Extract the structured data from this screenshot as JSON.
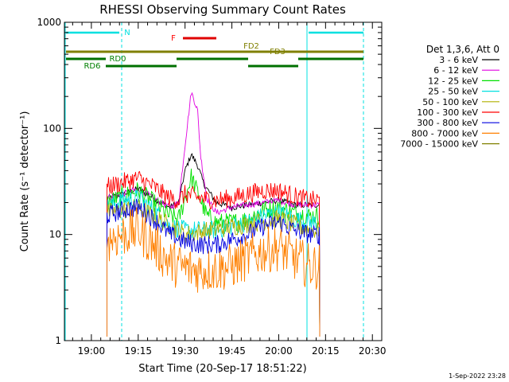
{
  "footer_date": "1-Sep-2022 23:28",
  "chart_data": {
    "type": "line",
    "title": "RHESSI Observing Summary Count Rates",
    "xlabel": "Start Time (20-Sep-17 18:51:22)",
    "ylabel": "Count Rate (s⁻¹ detector⁻¹)",
    "yscale": "log",
    "ylim": [
      1,
      1000
    ],
    "xlim": [
      "18:51:22",
      "20:33"
    ],
    "x_ticks": [
      "19:00",
      "19:15",
      "19:30",
      "19:45",
      "20:00",
      "20:15",
      "20:30"
    ],
    "y_ticks": [
      "1",
      "10",
      "100",
      "1000"
    ],
    "grid": false,
    "legend_title": "Det 1,3,6, Att 0",
    "legend_position": "right",
    "series": [
      {
        "name": "3 - 6 keV",
        "color": "#000000",
        "points": [
          [
            "19:05",
            22
          ],
          [
            "19:10",
            24
          ],
          [
            "19:15",
            27
          ],
          [
            "19:20",
            22
          ],
          [
            "19:25",
            18
          ],
          [
            "19:28",
            20
          ],
          [
            "19:30",
            40
          ],
          [
            "19:32",
            57
          ],
          [
            "19:34",
            45
          ],
          [
            "19:36",
            30
          ],
          [
            "19:40",
            20
          ],
          [
            "19:45",
            18
          ],
          [
            "19:50",
            19
          ],
          [
            "19:55",
            20
          ],
          [
            "20:00",
            21
          ],
          [
            "20:05",
            19
          ],
          [
            "20:10",
            19
          ]
        ]
      },
      {
        "name": "6 - 12 keV",
        "color": "#e000e0",
        "points": [
          [
            "19:05",
            22
          ],
          [
            "19:10",
            24
          ],
          [
            "19:15",
            27
          ],
          [
            "19:20",
            22
          ],
          [
            "19:25",
            18
          ],
          [
            "19:28",
            20
          ],
          [
            "19:30",
            70
          ],
          [
            "19:32",
            220
          ],
          [
            "19:34",
            150
          ],
          [
            "19:35",
            55
          ],
          [
            "19:37",
            22
          ],
          [
            "19:40",
            16
          ],
          [
            "19:45",
            18
          ],
          [
            "19:50",
            19
          ],
          [
            "19:55",
            20
          ],
          [
            "20:00",
            21
          ],
          [
            "20:05",
            19
          ],
          [
            "20:10",
            19
          ]
        ]
      },
      {
        "name": "12 - 25 keV",
        "color": "#00e000",
        "points": [
          [
            "19:05",
            20
          ],
          [
            "19:10",
            23
          ],
          [
            "19:15",
            26
          ],
          [
            "19:20",
            20
          ],
          [
            "19:25",
            15
          ],
          [
            "19:28",
            14
          ],
          [
            "19:30",
            22
          ],
          [
            "19:32",
            35
          ],
          [
            "19:34",
            25
          ],
          [
            "19:37",
            15
          ],
          [
            "19:40",
            13
          ],
          [
            "19:45",
            13
          ],
          [
            "19:50",
            14
          ],
          [
            "19:55",
            17
          ],
          [
            "20:00",
            18
          ],
          [
            "20:05",
            16
          ],
          [
            "20:10",
            15
          ]
        ]
      },
      {
        "name": "25 - 50 keV",
        "color": "#00e0e0",
        "points": [
          [
            "19:05",
            18
          ],
          [
            "19:10",
            21
          ],
          [
            "19:15",
            22
          ],
          [
            "19:20",
            17
          ],
          [
            "19:25",
            12
          ],
          [
            "19:30",
            11
          ],
          [
            "19:35",
            11
          ],
          [
            "19:40",
            11
          ],
          [
            "19:45",
            12
          ],
          [
            "19:50",
            13
          ],
          [
            "19:55",
            15
          ],
          [
            "20:00",
            16
          ],
          [
            "20:05",
            14
          ],
          [
            "20:10",
            13
          ]
        ]
      },
      {
        "name": "50 - 100 keV",
        "color": "#b0b000",
        "points": [
          [
            "19:05",
            16
          ],
          [
            "19:15",
            18
          ],
          [
            "19:30",
            10
          ],
          [
            "20:00",
            14
          ],
          [
            "20:10",
            11
          ]
        ]
      },
      {
        "name": "100 - 300 keV",
        "color": "#ff0000",
        "points": [
          [
            "19:05",
            28
          ],
          [
            "19:10",
            31
          ],
          [
            "19:15",
            34
          ],
          [
            "19:20",
            28
          ],
          [
            "19:25",
            22
          ],
          [
            "19:28",
            21
          ],
          [
            "19:30",
            24
          ],
          [
            "19:35",
            22
          ],
          [
            "19:40",
            21
          ],
          [
            "19:45",
            22
          ],
          [
            "19:50",
            24
          ],
          [
            "19:55",
            26
          ],
          [
            "20:00",
            26
          ],
          [
            "20:05",
            23
          ],
          [
            "20:10",
            21
          ]
        ]
      },
      {
        "name": "300 - 800 keV",
        "color": "#0000e0",
        "points": [
          [
            "19:05",
            15
          ],
          [
            "19:10",
            17
          ],
          [
            "19:15",
            18
          ],
          [
            "19:20",
            14
          ],
          [
            "19:25",
            10
          ],
          [
            "19:30",
            8.5
          ],
          [
            "19:35",
            8
          ],
          [
            "19:40",
            8
          ],
          [
            "19:45",
            9
          ],
          [
            "19:50",
            10
          ],
          [
            "19:55",
            12
          ],
          [
            "20:00",
            13
          ],
          [
            "20:05",
            11
          ],
          [
            "20:10",
            10
          ]
        ]
      },
      {
        "name": "800 - 7000 keV",
        "color": "#ff8000",
        "points": [
          [
            "19:05",
            9
          ],
          [
            "19:10",
            10
          ],
          [
            "19:15",
            11
          ],
          [
            "19:20",
            8
          ],
          [
            "19:25",
            5.5
          ],
          [
            "19:30",
            4.8
          ],
          [
            "19:35",
            4.6
          ],
          [
            "19:40",
            4.7
          ],
          [
            "19:45",
            5
          ],
          [
            "19:50",
            6
          ],
          [
            "19:55",
            7
          ],
          [
            "20:00",
            7.5
          ],
          [
            "20:05",
            6
          ],
          [
            "20:10",
            5
          ]
        ]
      },
      {
        "name": "7000 - 15000 keV",
        "color": "#808000",
        "points": []
      }
    ],
    "annotations": [
      {
        "label": "N",
        "color": "#00e0e0"
      },
      {
        "label": "F",
        "color": "#ff0000"
      },
      {
        "label": "FD2",
        "color": "#808000"
      },
      {
        "label": "FD3",
        "color": "#808000"
      },
      {
        "label": "RD0",
        "color": "#008000"
      },
      {
        "label": "RD6",
        "color": "#008000"
      }
    ]
  }
}
